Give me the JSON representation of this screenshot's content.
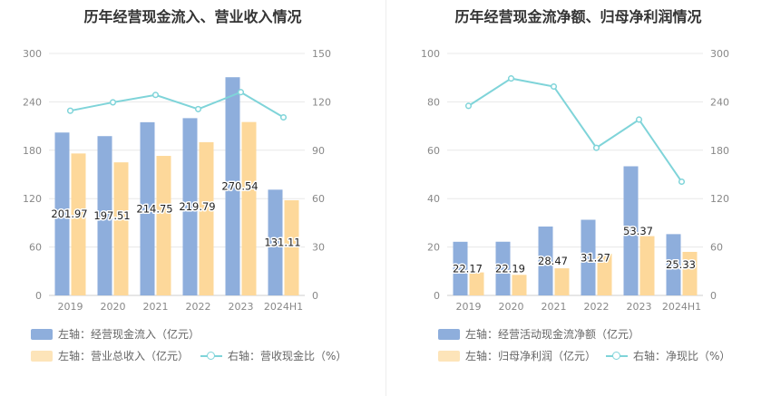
{
  "chart_data": [
    {
      "type": "bar",
      "title": "历年经营现金流入、营业收入情况",
      "categories": [
        "2019",
        "2020",
        "2021",
        "2022",
        "2023",
        "2024H1"
      ],
      "left_axis": {
        "min": 0,
        "max": 300,
        "ticks": [
          "0",
          "60",
          "120",
          "180",
          "240",
          "300"
        ]
      },
      "right_axis": {
        "min": 0,
        "max": 150,
        "ticks": [
          "0",
          "30",
          "60",
          "90",
          "120",
          "150"
        ]
      },
      "grid": true,
      "legend_position": "bottom-left",
      "series": [
        {
          "name": "左轴：经营现金流入（亿元）",
          "kind": "bar",
          "axis": "left",
          "color": "#8eaedc",
          "values": [
            201.97,
            197.51,
            214.75,
            219.79,
            270.54,
            131.11
          ],
          "labels": [
            "201.97",
            "197.51",
            "214.75",
            "219.79",
            "270.54",
            "131.11"
          ]
        },
        {
          "name": "左轴：营业总收入（亿元）",
          "kind": "bar",
          "axis": "left",
          "color": "#fdd89a",
          "values": [
            176,
            165,
            173,
            190,
            215,
            118
          ]
        },
        {
          "name": "右轴：营收现金比（%）",
          "kind": "line",
          "axis": "right",
          "color": "#7fd4d9",
          "values": [
            114.5,
            119.7,
            124.3,
            115.5,
            126.0,
            110.4
          ]
        }
      ]
    },
    {
      "type": "bar",
      "title": "历年经营现金流净额、归母净利润情况",
      "categories": [
        "2019",
        "2020",
        "2021",
        "2022",
        "2023",
        "2024H1"
      ],
      "left_axis": {
        "min": 0,
        "max": 100,
        "ticks": [
          "0",
          "20",
          "40",
          "60",
          "80",
          "100"
        ]
      },
      "right_axis": {
        "min": 0,
        "max": 300,
        "ticks": [
          "0",
          "60",
          "120",
          "180",
          "240",
          "300"
        ]
      },
      "grid": true,
      "legend_position": "bottom-left",
      "series": [
        {
          "name": "左轴：经营活动现金流净额（亿元）",
          "kind": "bar",
          "axis": "left",
          "color": "#8eaedc",
          "values": [
            22.17,
            22.19,
            28.47,
            31.27,
            53.37,
            25.33
          ],
          "labels": [
            "22.17",
            "22.19",
            "28.47",
            "31.27",
            "53.37",
            "25.33"
          ]
        },
        {
          "name": "左轴：归母净利润（亿元）",
          "kind": "bar",
          "axis": "left",
          "color": "#fdd89a",
          "values": [
            9.5,
            8.5,
            11.2,
            17.2,
            24.5,
            18.0
          ]
        },
        {
          "name": "右轴：净现比（%）",
          "kind": "line",
          "axis": "right",
          "color": "#7fd4d9",
          "values": [
            235,
            269,
            259,
            183,
            218,
            141
          ]
        }
      ]
    }
  ]
}
